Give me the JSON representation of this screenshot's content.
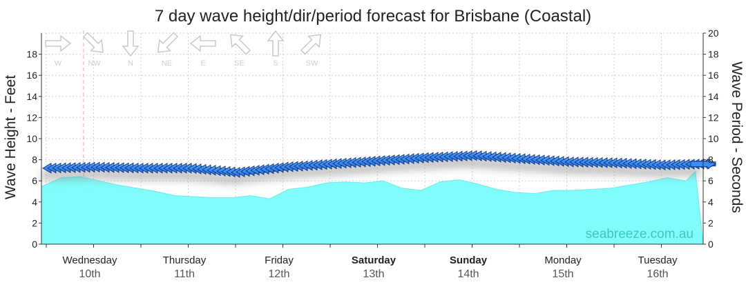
{
  "chart_data": {
    "type": "area",
    "title": "7 day wave height/dir/period forecast for Brisbane (Coastal)",
    "ylabel_left": "Wave Height - Feet",
    "ylabel_right": "Wave Period - Seconds",
    "watermark": "seabreeze.com.au",
    "ylim_left": [
      0,
      20
    ],
    "ylim_right": [
      0,
      20
    ],
    "yticks_left": [
      0,
      2,
      4,
      6,
      8,
      10,
      12,
      14,
      16,
      18
    ],
    "yticks_right": [
      0,
      2,
      4,
      6,
      8,
      10,
      12,
      14,
      16,
      18,
      20
    ],
    "grid": true,
    "days": [
      {
        "name": "Wednesday",
        "date": "10th",
        "bold": false
      },
      {
        "name": "Thursday",
        "date": "11th",
        "bold": false
      },
      {
        "name": "Friday",
        "date": "12th",
        "bold": false
      },
      {
        "name": "Saturday",
        "date": "13th",
        "bold": true
      },
      {
        "name": "Sunday",
        "date": "14th",
        "bold": true
      },
      {
        "name": "Monday",
        "date": "15th",
        "bold": false
      },
      {
        "name": "Tuesday",
        "date": "16th",
        "bold": false
      }
    ],
    "direction_legend": [
      {
        "label": "W",
        "angle": 0
      },
      {
        "label": "NW",
        "angle": 45
      },
      {
        "label": "N",
        "angle": 90
      },
      {
        "label": "NE",
        "angle": 135
      },
      {
        "label": "E",
        "angle": 180
      },
      {
        "label": "SE",
        "angle": 225
      },
      {
        "label": "S",
        "angle": 270
      },
      {
        "label": "SW",
        "angle": 315
      }
    ],
    "series": [
      {
        "name": "Wave Height",
        "x_day": [
          0,
          0.2,
          0.4,
          0.6,
          0.8,
          1.0,
          1.2,
          1.4,
          1.6,
          1.8,
          2.0,
          2.2,
          2.4,
          2.6,
          2.8,
          3.0,
          3.2,
          3.4,
          3.6,
          3.8,
          4.0,
          4.2,
          4.4,
          4.6,
          4.8,
          5.0,
          5.2,
          5.4,
          5.6,
          5.8,
          6.0,
          6.2,
          6.4,
          6.6,
          6.8,
          6.9
        ],
        "values_feet": [
          5.5,
          6.3,
          6.4,
          6.0,
          5.6,
          5.3,
          5.0,
          4.6,
          4.5,
          4.4,
          4.4,
          4.6,
          4.3,
          5.2,
          5.4,
          5.8,
          5.9,
          5.8,
          6.0,
          5.3,
          5.1,
          5.9,
          6.1,
          5.7,
          5.2,
          4.9,
          4.8,
          5.1,
          5.1,
          5.2,
          5.3,
          5.6,
          5.9,
          6.3,
          6.0,
          6.9
        ]
      },
      {
        "name": "Wave Period",
        "x_day": [
          0,
          0.5,
          1.0,
          1.5,
          2.0,
          2.2,
          2.5,
          3.0,
          3.5,
          4.0,
          4.5,
          5.0,
          5.5,
          6.0,
          6.5,
          6.9
        ],
        "values_seconds": [
          7.2,
          7.3,
          7.2,
          7.2,
          6.8,
          7.0,
          7.3,
          7.6,
          7.9,
          8.2,
          8.4,
          8.1,
          7.8,
          7.7,
          7.5,
          7.6
        ],
        "direction": "E"
      }
    ]
  }
}
